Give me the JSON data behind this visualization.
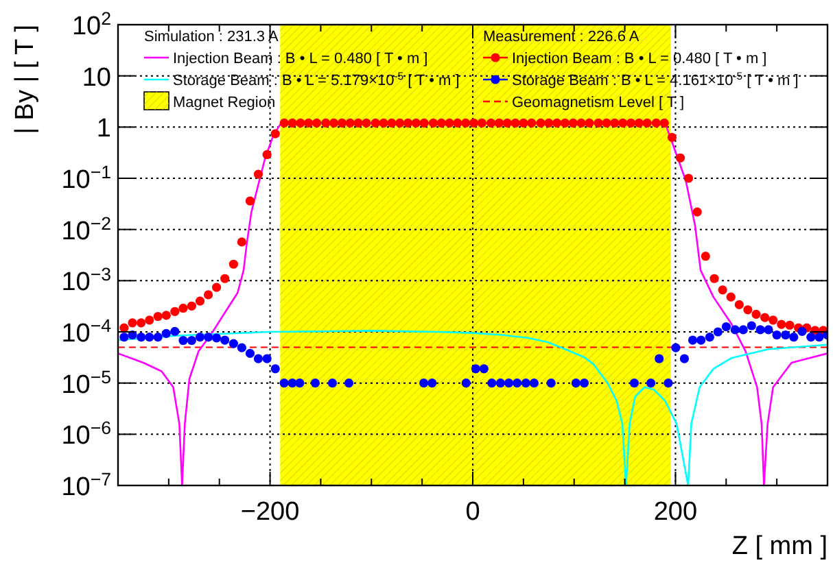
{
  "chart_data": {
    "type": "scatter",
    "xlabel": "Z [ mm ]",
    "ylabel": "| By | [ T ]",
    "xlim": [
      -350,
      350
    ],
    "ylim": [
      1e-07,
      100
    ],
    "log": "y",
    "grid": true,
    "legend": "top",
    "xticks": [
      {
        "value": -350,
        "label": null
      },
      {
        "value": -300,
        "label": null
      },
      {
        "value": -250,
        "label": null
      },
      -200,
      {
        "value": -150,
        "label": null
      },
      {
        "value": -100,
        "label": null
      },
      {
        "value": -50,
        "label": null
      },
      0,
      {
        "value": 50,
        "label": null
      },
      {
        "value": 100,
        "label": null
      },
      {
        "value": 150,
        "label": null
      },
      200,
      {
        "value": 250,
        "label": null
      },
      {
        "value": 300,
        "label": null
      },
      {
        "value": 350,
        "label": null
      }
    ],
    "yticks": [
      {
        "value": 1e-07,
        "label": "10$^{−7}$"
      },
      {
        "value": 1e-06,
        "label": "10$^{−6}$"
      },
      {
        "value": 1e-05,
        "label": "10$^{−5}$"
      },
      {
        "value": 0.0001,
        "label": "10$^{−4}$"
      },
      {
        "value": 0.001,
        "label": "10$^{−3}$"
      },
      {
        "value": 0.01,
        "label": "10$^{−2}$"
      },
      {
        "value": 0.1,
        "label": "10$^{−1}$"
      },
      1,
      10,
      {
        "value": 100,
        "label": "10$^{2}$"
      }
    ],
    "annotations": [
      "Simulation : 231.3 A",
      "Measurement : 226.6 A"
    ],
    "bands": [
      {
        "axis": "x",
        "from": -190,
        "to": 195,
        "label": "Magnet Region",
        "color": "#ffff00"
      }
    ],
    "ref_lines": [
      {
        "axis": "y",
        "value": 5e-05,
        "label": "Geomagnetism Level [ T ]",
        "color": "#ff0000",
        "line_style": "dashed"
      }
    ],
    "series": [
      {
        "name": "Injection Beam : B • L = 0.480  [ T • m ]",
        "type": "line",
        "color": "#ff00ff",
        "line_style": "solid",
        "x": [
          -350,
          -325,
          -307,
          -295.5,
          -289.5,
          -286.8,
          -284.1,
          -279.6,
          -270.5,
          -256.9,
          -243.3,
          -232,
          -226.1,
          -222.9,
          -218.4,
          -211.6,
          -204.8,
          -196.6,
          -189,
          189.8,
          198.9,
          210.2,
          219.3,
          224.8,
          237.4,
          255.5,
          269.1,
          280.5,
          285,
          287.3,
          290.9,
          296.3,
          314.5,
          350
        ],
        "values": [
          3.8e-05,
          2.5e-05,
          1.7e-05,
          8.3e-06,
          1.6e-06,
          1e-07,
          1.6e-06,
          1.2e-05,
          4.2e-05,
          9.8e-05,
          0.00026,
          0.00058,
          0.0016,
          0.0054,
          0.022,
          0.075,
          0.25,
          0.7,
          1.2,
          1.2,
          0.38,
          0.09,
          0.012,
          0.0016,
          0.00048,
          0.00014,
          4.2e-05,
          8.3e-06,
          1.6e-06,
          1e-07,
          1.6e-06,
          8.3e-06,
          2.5e-05,
          3.8e-05
        ]
      },
      {
        "name": "Storage Beam  : B • L = 5.179×10$^{-5}$  [ T • m ]",
        "type": "line",
        "color": "#00ffff",
        "line_style": "solid",
        "x": [
          -350,
          -289,
          -200,
          -100,
          -35,
          0,
          29,
          55,
          74,
          91,
          110,
          119.5,
          133,
          142,
          147.6,
          151.2,
          154.8,
          160.3,
          169.4,
          178.5,
          189.8,
          201.1,
          212.5,
          215.6,
          223.8,
          237.4,
          255.5,
          291.8,
          350
        ],
        "values": [
          6.9e-05,
          8.5e-05,
          0.0001,
          0.000105,
          0.0001,
          9.5e-05,
          8.7e-05,
          7.6e-05,
          6.3e-05,
          4.6e-05,
          3.2e-05,
          2.3e-05,
          1e-05,
          4.5e-06,
          1.6e-06,
          1e-07,
          1.6e-06,
          5.5e-06,
          8.3e-06,
          7.5e-06,
          4.5e-06,
          1.6e-06,
          1e-07,
          1.6e-06,
          8.3e-06,
          1.9e-05,
          3.1e-05,
          4.6e-05,
          5.6e-05
        ]
      },
      {
        "name": "Injection Beam : B • L = 0.480  [ T • m ]",
        "color": "#ff0000",
        "marker": "circle",
        "x": [
          -344,
          -335.8,
          -327.2,
          -319,
          -310.6,
          -302.4,
          -293.9,
          -285.7,
          -277.3,
          -269.1,
          -260.9,
          -252.8,
          -244.6,
          -236,
          -227.9,
          -219.7,
          -211.6,
          -203,
          -194.8,
          -186,
          -178,
          -170,
          -162,
          -154,
          -145,
          -137,
          -129,
          -121,
          -113,
          -105,
          -96,
          -88,
          -80,
          -72,
          -64,
          -56,
          -48,
          -39,
          -31,
          -23,
          -15,
          -7,
          1,
          9,
          18,
          26,
          34,
          42,
          50,
          58,
          67,
          75,
          83,
          91,
          99,
          107,
          115,
          124,
          132,
          140,
          148,
          156,
          164,
          172,
          181,
          189,
          196.6,
          204.8,
          212.9,
          221.5,
          229.7,
          238.3,
          246.5,
          254.7,
          262.9,
          271.4,
          279.6,
          288.2,
          296.3,
          304.5,
          312.7,
          321.3,
          329.5,
          337.7,
          345.9
        ],
        "values": [
          0.00012,
          0.00015,
          0.00015,
          0.00017,
          0.0002,
          0.00021,
          0.00025,
          0.00029,
          0.00032,
          0.0004,
          0.00053,
          0.00074,
          0.0011,
          0.0021,
          0.0057,
          0.036,
          0.12,
          0.29,
          0.74,
          1.2,
          1.2,
          1.2,
          1.2,
          1.2,
          1.2,
          1.2,
          1.2,
          1.2,
          1.2,
          1.2,
          1.2,
          1.2,
          1.2,
          1.2,
          1.2,
          1.2,
          1.2,
          1.2,
          1.2,
          1.2,
          1.2,
          1.2,
          1.2,
          1.2,
          1.2,
          1.2,
          1.2,
          1.2,
          1.2,
          1.2,
          1.2,
          1.2,
          1.2,
          1.2,
          1.2,
          1.2,
          1.2,
          1.2,
          1.2,
          1.2,
          1.2,
          1.2,
          1.2,
          1.2,
          1.2,
          1.2,
          0.63,
          0.25,
          0.1,
          0.022,
          0.003,
          0.0011,
          0.00066,
          0.00048,
          0.00034,
          0.00027,
          0.00022,
          0.00019,
          0.00017,
          0.00014,
          0.000135,
          0.00012,
          0.00012,
          0.000107,
          0.000107
        ]
      },
      {
        "name": "Storage Beam  : B • L = 4.161×10$^{-5}$  [ T • m ]",
        "color": "#0000ff",
        "marker": "circle",
        "x": [
          -344,
          -335.8,
          -327.2,
          -319,
          -310.6,
          -302.4,
          -293.9,
          -285.7,
          -277.3,
          -269.1,
          -260.9,
          -252.8,
          -244.6,
          -236,
          -227.9,
          -219.7,
          -211.6,
          -203,
          -194.8,
          -186.1,
          -178,
          -170.7,
          -155.4,
          -138.5,
          -122.2,
          -48.3,
          -40.1,
          -6.6,
          3,
          11.1,
          18.8,
          27.4,
          35.6,
          43.8,
          52.4,
          60.5,
          77.3,
          101.8,
          110,
          159.4,
          175.7,
          183.9,
          192.9,
          200.3,
          208.8,
          217,
          225.2,
          233.8,
          241.9,
          250.1,
          258.8,
          266.9,
          275.1,
          283.7,
          291.8,
          300,
          308.6,
          316.7,
          324.9,
          333.6,
          341.8,
          349.9
        ],
        "values": [
          7.9e-05,
          8.7e-05,
          7.9e-05,
          7.9e-05,
          7.9e-05,
          9.3e-05,
          0.000102,
          6.8e-05,
          6.8e-05,
          7.9e-05,
          7.9e-05,
          7.6e-05,
          6.9e-05,
          5.9e-05,
          4.9e-05,
          3.8e-05,
          3e-05,
          3e-05,
          1.9e-05,
          1e-05,
          1e-05,
          1e-05,
          1e-05,
          1e-05,
          1e-05,
          1e-05,
          1e-05,
          1e-05,
          1.9e-05,
          1.9e-05,
          1e-05,
          1e-05,
          1e-05,
          1e-05,
          1e-05,
          1e-05,
          1e-05,
          1e-05,
          1e-05,
          1e-05,
          1e-05,
          3e-05,
          1e-05,
          4.9e-05,
          3e-05,
          6.9e-05,
          6.9e-05,
          7.9e-05,
          0.0001,
          0.000126,
          0.00011,
          0.00011,
          0.000132,
          0.00011,
          0.00011,
          8.7e-05,
          8.7e-05,
          7.9e-05,
          0.000102,
          7.9e-05,
          7.9e-05,
          8.7e-05
        ]
      }
    ]
  }
}
